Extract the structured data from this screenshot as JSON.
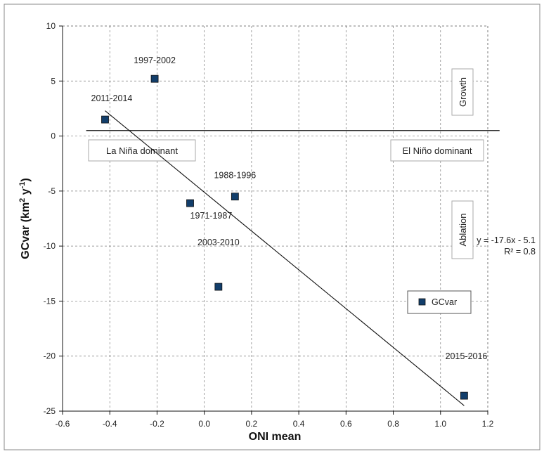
{
  "chart_data": {
    "type": "scatter",
    "xlabel": "ONI mean",
    "ylabel": "GCvar (km",
    "ylabel_sup1": "2",
    "ylabel_mid": " y",
    "ylabel_sup2": "-1",
    "ylabel_end": ")",
    "xlim": [
      -0.6,
      1.2
    ],
    "ylim": [
      -25,
      10
    ],
    "xticks": [
      -0.6,
      -0.4,
      -0.2,
      0.0,
      0.2,
      0.4,
      0.6,
      0.8,
      1.0,
      1.2
    ],
    "xtick_labels": [
      "-0.6",
      "-0.4",
      "-0.2",
      "0.0",
      "0.2",
      "0.4",
      "0.6",
      "0.8",
      "1.0",
      "1.2"
    ],
    "yticks": [
      10,
      5,
      0,
      -5,
      -10,
      -15,
      -20,
      -25
    ],
    "ytick_labels": [
      "10",
      "5",
      "0",
      "-5",
      "-10",
      "-15",
      "-20",
      "-25"
    ],
    "grid": true,
    "series": [
      {
        "name": "GCvar",
        "marker": "square",
        "color": "#123e6b",
        "points": [
          {
            "x": -0.42,
            "y": 1.5,
            "label": "2011-2014"
          },
          {
            "x": -0.21,
            "y": 5.2,
            "label": "1997-2002"
          },
          {
            "x": -0.06,
            "y": -6.1,
            "label": "1971-1987"
          },
          {
            "x": 0.13,
            "y": -5.5,
            "label": "1988-1996"
          },
          {
            "x": 0.06,
            "y": -13.7,
            "label": "2003-2010"
          },
          {
            "x": 1.1,
            "y": -23.6,
            "label": "2015-2016"
          }
        ]
      }
    ],
    "trendline": {
      "x_start": -0.42,
      "x_end": 1.1,
      "y_start": 2.3,
      "y_end": -24.5
    },
    "equation": "y = -17.6x - 5.1",
    "r_squared": "R² = 0.8",
    "threshold_line": {
      "y": 0.5,
      "x_start": -0.5,
      "x_end": 1.25
    },
    "regions": {
      "growth": "Growth",
      "ablation": "Ablation",
      "la_nina": "La Niña dominant",
      "el_nino": "El Niño dominant"
    },
    "legend": {
      "label": "GCvar",
      "position": "right"
    }
  }
}
